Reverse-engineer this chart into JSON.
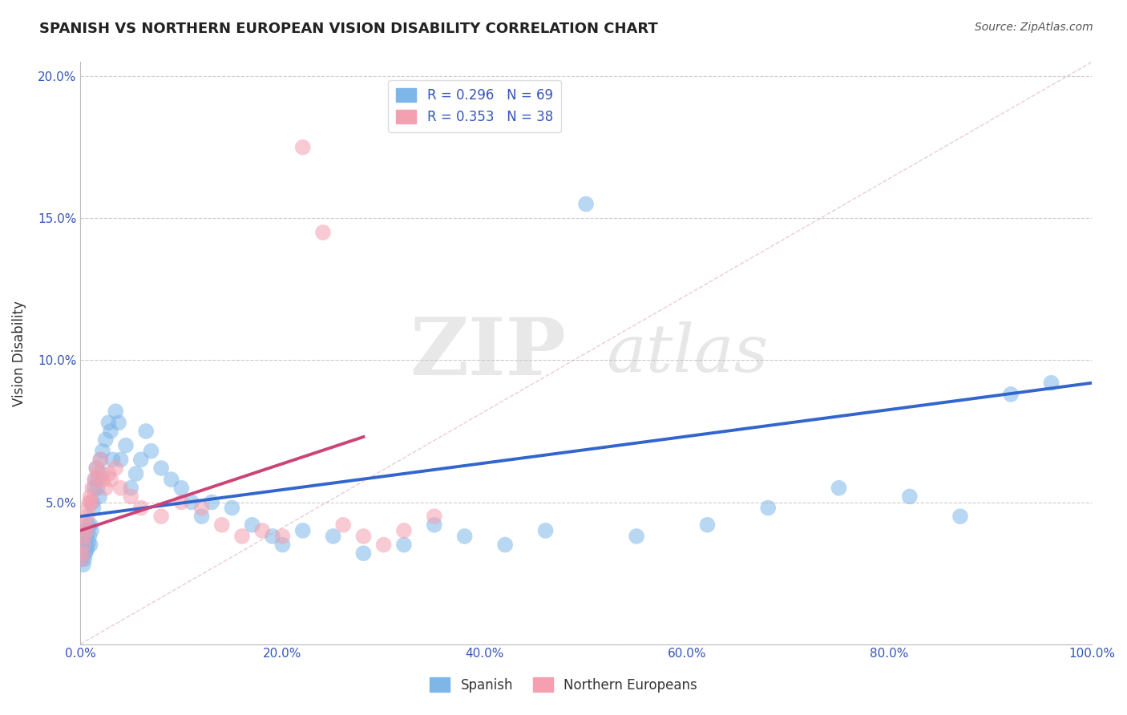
{
  "title": "SPANISH VS NORTHERN EUROPEAN VISION DISABILITY CORRELATION CHART",
  "source": "Source: ZipAtlas.com",
  "ylabel": "Vision Disability",
  "xlim": [
    0,
    1.0
  ],
  "ylim": [
    0,
    0.205
  ],
  "xticks": [
    0.0,
    0.2,
    0.4,
    0.6,
    0.8,
    1.0
  ],
  "yticks": [
    0.0,
    0.05,
    0.1,
    0.15,
    0.2
  ],
  "xtick_labels": [
    "0.0%",
    "20.0%",
    "40.0%",
    "60.0%",
    "80.0%",
    "100.0%"
  ],
  "ytick_labels": [
    "",
    "5.0%",
    "10.0%",
    "15.0%",
    "20.0%"
  ],
  "legend_label1": "R = 0.296   N = 69",
  "legend_label2": "R = 0.353   N = 38",
  "color_blue": "#7EB6E8",
  "color_pink": "#F4A0B0",
  "trendline_blue": "#3366CC",
  "trendline_pink": "#CC4477",
  "watermark_zip": "ZIP",
  "watermark_atlas": "atlas",
  "blue_trend_x0": 0.0,
  "blue_trend_y0": 0.045,
  "blue_trend_x1": 1.0,
  "blue_trend_y1": 0.092,
  "pink_trend_x0": 0.0,
  "pink_trend_y0": 0.04,
  "pink_trend_x1": 0.28,
  "pink_trend_y1": 0.073,
  "sp_x": [
    0.001,
    0.002,
    0.003,
    0.003,
    0.004,
    0.004,
    0.005,
    0.005,
    0.006,
    0.006,
    0.007,
    0.007,
    0.008,
    0.008,
    0.009,
    0.01,
    0.01,
    0.011,
    0.012,
    0.013,
    0.014,
    0.015,
    0.016,
    0.017,
    0.018,
    0.019,
    0.02,
    0.021,
    0.022,
    0.025,
    0.028,
    0.03,
    0.032,
    0.035,
    0.038,
    0.04,
    0.045,
    0.05,
    0.055,
    0.06,
    0.065,
    0.07,
    0.08,
    0.09,
    0.1,
    0.11,
    0.12,
    0.13,
    0.15,
    0.17,
    0.19,
    0.2,
    0.22,
    0.25,
    0.28,
    0.32,
    0.35,
    0.38,
    0.42,
    0.46,
    0.5,
    0.55,
    0.62,
    0.68,
    0.75,
    0.82,
    0.87,
    0.92,
    0.96
  ],
  "sp_y": [
    0.03,
    0.032,
    0.028,
    0.035,
    0.03,
    0.038,
    0.032,
    0.035,
    0.033,
    0.038,
    0.034,
    0.04,
    0.036,
    0.042,
    0.038,
    0.035,
    0.042,
    0.04,
    0.05,
    0.048,
    0.055,
    0.058,
    0.062,
    0.055,
    0.058,
    0.052,
    0.065,
    0.06,
    0.068,
    0.072,
    0.078,
    0.075,
    0.065,
    0.082,
    0.078,
    0.065,
    0.07,
    0.055,
    0.06,
    0.065,
    0.075,
    0.068,
    0.062,
    0.058,
    0.055,
    0.05,
    0.045,
    0.05,
    0.048,
    0.042,
    0.038,
    0.035,
    0.04,
    0.038,
    0.032,
    0.035,
    0.042,
    0.038,
    0.035,
    0.04,
    0.155,
    0.038,
    0.042,
    0.048,
    0.055,
    0.052,
    0.045,
    0.088,
    0.092
  ],
  "no_x": [
    0.001,
    0.002,
    0.003,
    0.004,
    0.005,
    0.006,
    0.007,
    0.008,
    0.009,
    0.01,
    0.011,
    0.012,
    0.014,
    0.016,
    0.018,
    0.02,
    0.022,
    0.025,
    0.028,
    0.03,
    0.035,
    0.04,
    0.05,
    0.06,
    0.08,
    0.1,
    0.12,
    0.14,
    0.16,
    0.18,
    0.2,
    0.22,
    0.24,
    0.26,
    0.28,
    0.3,
    0.32,
    0.35
  ],
  "no_y": [
    0.03,
    0.032,
    0.035,
    0.038,
    0.042,
    0.04,
    0.045,
    0.048,
    0.05,
    0.052,
    0.05,
    0.055,
    0.058,
    0.062,
    0.06,
    0.065,
    0.058,
    0.055,
    0.06,
    0.058,
    0.062,
    0.055,
    0.052,
    0.048,
    0.045,
    0.05,
    0.048,
    0.042,
    0.038,
    0.04,
    0.038,
    0.175,
    0.145,
    0.042,
    0.038,
    0.035,
    0.04,
    0.045
  ]
}
